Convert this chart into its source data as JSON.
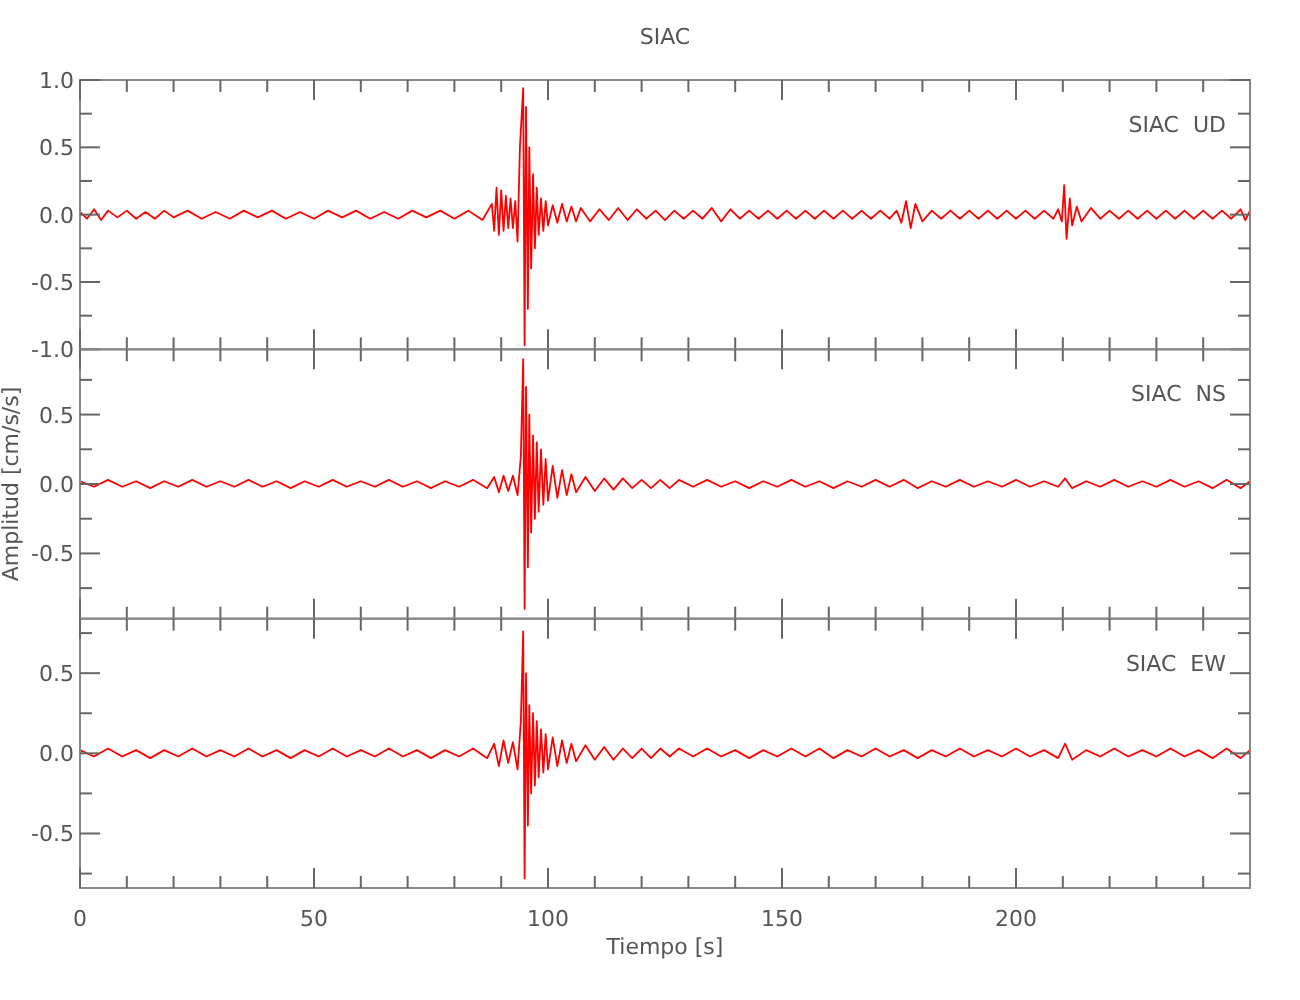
{
  "chart_data": [
    {
      "type": "line",
      "title": "SIAC",
      "annotations": [
        "SIAC  UD"
      ],
      "tick_labels": "y",
      "xlim": [
        0,
        250
      ],
      "xticks": [
        0,
        {
          "value": 10,
          "label": null
        },
        {
          "value": 20,
          "label": null
        },
        {
          "value": 30,
          "label": null
        },
        {
          "value": 40,
          "label": null
        },
        50,
        {
          "value": 60,
          "label": null
        },
        {
          "value": 70,
          "label": null
        },
        {
          "value": 80,
          "label": null
        },
        {
          "value": 90,
          "label": null
        },
        100,
        {
          "value": 110,
          "label": null
        },
        {
          "value": 120,
          "label": null
        },
        {
          "value": 130,
          "label": null
        },
        {
          "value": 140,
          "label": null
        },
        150,
        {
          "value": 160,
          "label": null
        },
        {
          "value": 170,
          "label": null
        },
        {
          "value": 180,
          "label": null
        },
        {
          "value": 190,
          "label": null
        },
        200,
        {
          "value": 210,
          "label": null
        },
        {
          "value": 220,
          "label": null
        },
        {
          "value": 230,
          "label": null
        },
        {
          "value": 240,
          "label": null
        }
      ],
      "ylim": [
        -1,
        1
      ],
      "yticks": [
        {
          "value": -1,
          "label": "-1.0"
        },
        {
          "value": -0.75,
          "label": null
        },
        {
          "value": -0.5,
          "label": "-0.5"
        },
        {
          "value": -0.25,
          "label": null
        },
        {
          "value": 0,
          "label": "0.0"
        },
        {
          "value": 0.25,
          "label": null
        },
        {
          "value": 0.5,
          "label": "0.5"
        },
        {
          "value": 0.75,
          "label": null
        },
        {
          "value": 1,
          "label": "1.0"
        }
      ],
      "x": [
        0,
        1.5,
        3,
        4.5,
        6,
        8,
        10,
        12,
        14,
        16,
        18,
        20,
        23,
        26,
        29,
        32,
        35,
        38,
        41,
        44,
        47,
        50,
        53,
        56,
        59,
        62,
        65,
        68,
        71,
        74,
        77,
        80,
        83,
        86,
        88,
        88.5,
        89,
        89.5,
        90,
        90.5,
        91,
        91.5,
        92,
        92.5,
        93,
        93.5,
        94,
        94.7,
        95,
        95.3,
        95.7,
        96,
        96.4,
        96.8,
        97.2,
        97.6,
        98,
        98.5,
        99,
        99.5,
        100,
        101,
        102,
        103,
        104,
        105,
        106,
        107,
        109,
        111,
        113,
        115,
        117,
        119,
        121,
        123,
        125,
        127,
        129,
        131,
        133,
        135,
        137,
        139,
        141,
        143,
        145,
        147,
        149,
        151,
        153,
        155,
        157,
        159,
        161,
        163,
        165,
        167,
        169,
        171,
        173,
        174.5,
        175.5,
        176.5,
        177.5,
        178.5,
        180,
        182,
        184,
        186,
        188,
        190,
        192,
        194,
        196,
        198,
        200,
        202,
        204,
        206,
        208,
        209,
        209.8,
        210.3,
        210.8,
        211.5,
        212,
        213,
        214,
        216,
        218,
        220,
        222,
        224,
        226,
        228,
        230,
        232,
        234,
        236,
        238,
        240,
        242,
        244,
        246,
        248,
        249,
        250
      ],
      "series": [
        {
          "color": "#ff0000",
          "values": [
            0.02,
            -0.03,
            0.04,
            -0.04,
            0.03,
            -0.02,
            0.03,
            -0.03,
            0.02,
            -0.03,
            0.03,
            -0.02,
            0.03,
            -0.03,
            0.02,
            -0.03,
            0.03,
            -0.02,
            0.03,
            -0.03,
            0.02,
            -0.03,
            0.03,
            -0.02,
            0.03,
            -0.03,
            0.02,
            -0.03,
            0.03,
            -0.02,
            0.03,
            -0.03,
            0.03,
            -0.04,
            0.08,
            -0.12,
            0.2,
            -0.15,
            0.18,
            -0.12,
            0.14,
            -0.1,
            0.12,
            -0.1,
            0.1,
            -0.2,
            0.5,
            0.94,
            -0.97,
            0.8,
            -0.7,
            0.5,
            -0.4,
            0.3,
            -0.25,
            0.2,
            -0.15,
            0.12,
            -0.12,
            0.1,
            -0.08,
            0.07,
            -0.06,
            0.08,
            -0.05,
            0.06,
            -0.05,
            0.05,
            -0.05,
            0.04,
            -0.04,
            0.05,
            -0.04,
            0.04,
            -0.03,
            0.03,
            -0.04,
            0.03,
            -0.03,
            0.03,
            -0.03,
            0.05,
            -0.05,
            0.04,
            -0.03,
            0.03,
            -0.03,
            0.03,
            -0.03,
            0.03,
            -0.03,
            0.03,
            -0.03,
            0.03,
            -0.03,
            0.03,
            -0.03,
            0.03,
            -0.03,
            0.03,
            -0.03,
            0.03,
            -0.06,
            0.1,
            -0.1,
            0.08,
            -0.05,
            0.03,
            -0.03,
            0.03,
            -0.03,
            0.03,
            -0.03,
            0.03,
            -0.03,
            0.03,
            -0.03,
            0.03,
            -0.03,
            0.03,
            -0.03,
            0.04,
            -0.05,
            0.22,
            -0.18,
            0.12,
            -0.08,
            0.06,
            -0.05,
            0.05,
            -0.03,
            0.03,
            -0.03,
            0.03,
            -0.03,
            0.03,
            -0.03,
            0.03,
            -0.03,
            0.03,
            -0.03,
            0.03,
            -0.03,
            0.03,
            -0.03,
            0.04,
            -0.04,
            0.03
          ]
        }
      ]
    },
    {
      "type": "line",
      "ylabel": "Amplitud [cm/s/s]",
      "annotations": [
        "SIAC  NS"
      ],
      "tick_labels": "y",
      "xlim": [
        0,
        250
      ],
      "xticks": [
        0,
        {
          "value": 10,
          "label": null
        },
        {
          "value": 20,
          "label": null
        },
        {
          "value": 30,
          "label": null
        },
        {
          "value": 40,
          "label": null
        },
        50,
        {
          "value": 60,
          "label": null
        },
        {
          "value": 70,
          "label": null
        },
        {
          "value": 80,
          "label": null
        },
        {
          "value": 90,
          "label": null
        },
        100,
        {
          "value": 110,
          "label": null
        },
        {
          "value": 120,
          "label": null
        },
        {
          "value": 130,
          "label": null
        },
        {
          "value": 140,
          "label": null
        },
        150,
        {
          "value": 160,
          "label": null
        },
        {
          "value": 170,
          "label": null
        },
        {
          "value": 180,
          "label": null
        },
        {
          "value": 190,
          "label": null
        },
        200,
        {
          "value": 210,
          "label": null
        },
        {
          "value": 220,
          "label": null
        },
        {
          "value": 230,
          "label": null
        },
        {
          "value": 240,
          "label": null
        }
      ],
      "ylim": [
        -0.97,
        0.97
      ],
      "yticks": [
        {
          "value": -0.75,
          "label": null
        },
        {
          "value": -0.5,
          "label": "-0.5"
        },
        {
          "value": -0.25,
          "label": null
        },
        {
          "value": 0,
          "label": "0.0"
        },
        {
          "value": 0.25,
          "label": null
        },
        {
          "value": 0.5,
          "label": "0.5"
        },
        {
          "value": 0.75,
          "label": null
        }
      ],
      "x": [
        0,
        3,
        6,
        9,
        12,
        15,
        18,
        21,
        24,
        27,
        30,
        33,
        36,
        39,
        42,
        45,
        48,
        51,
        54,
        57,
        60,
        63,
        66,
        69,
        72,
        75,
        78,
        81,
        84,
        87,
        88.5,
        89.5,
        90.5,
        91.5,
        92.5,
        93.5,
        94.2,
        94.7,
        95,
        95.3,
        95.7,
        96,
        96.4,
        96.8,
        97.2,
        97.6,
        98,
        98.5,
        99,
        99.5,
        100,
        101,
        102,
        103,
        104,
        105,
        106,
        108,
        110,
        112,
        114,
        116,
        118,
        120,
        122,
        124,
        126,
        128,
        131,
        134,
        137,
        140,
        143,
        146,
        149,
        152,
        155,
        158,
        161,
        164,
        167,
        170,
        173,
        176,
        179,
        182,
        185,
        188,
        191,
        194,
        197,
        200,
        203,
        206,
        209,
        210.5,
        212,
        215,
        218,
        221,
        224,
        227,
        230,
        233,
        236,
        239,
        242,
        245,
        248,
        250
      ],
      "series": [
        {
          "color": "#ff0000",
          "values": [
            0.02,
            -0.02,
            0.03,
            -0.02,
            0.02,
            -0.03,
            0.02,
            -0.02,
            0.03,
            -0.02,
            0.02,
            -0.02,
            0.03,
            -0.02,
            0.02,
            -0.03,
            0.02,
            -0.02,
            0.03,
            -0.02,
            0.02,
            -0.02,
            0.03,
            -0.02,
            0.02,
            -0.03,
            0.02,
            -0.02,
            0.03,
            -0.03,
            0.05,
            -0.06,
            0.06,
            -0.05,
            0.06,
            -0.08,
            0.2,
            0.9,
            -0.9,
            0.7,
            -0.6,
            0.5,
            -0.35,
            0.35,
            -0.25,
            0.3,
            -0.2,
            0.25,
            -0.15,
            0.18,
            -0.12,
            0.13,
            -0.1,
            0.1,
            -0.08,
            0.07,
            -0.06,
            0.05,
            -0.05,
            0.04,
            -0.04,
            0.04,
            -0.03,
            0.03,
            -0.03,
            0.03,
            -0.03,
            0.03,
            -0.02,
            0.03,
            -0.02,
            0.02,
            -0.03,
            0.02,
            -0.02,
            0.03,
            -0.02,
            0.02,
            -0.03,
            0.02,
            -0.02,
            0.03,
            -0.02,
            0.03,
            -0.03,
            0.02,
            -0.02,
            0.03,
            -0.02,
            0.02,
            -0.02,
            0.03,
            -0.02,
            0.02,
            -0.02,
            0.04,
            -0.03,
            0.02,
            -0.02,
            0.03,
            -0.02,
            0.02,
            -0.02,
            0.03,
            -0.02,
            0.02,
            -0.03,
            0.03,
            -0.03,
            0.02
          ]
        }
      ]
    },
    {
      "type": "line",
      "xlabel": "Tiempo [s]",
      "annotations": [
        "SIAC  EW"
      ],
      "xlim": [
        0,
        250
      ],
      "xticks": [
        0,
        {
          "value": 10,
          "label": null
        },
        {
          "value": 20,
          "label": null
        },
        {
          "value": 30,
          "label": null
        },
        {
          "value": 40,
          "label": null
        },
        50,
        {
          "value": 60,
          "label": null
        },
        {
          "value": 70,
          "label": null
        },
        {
          "value": 80,
          "label": null
        },
        {
          "value": 90,
          "label": null
        },
        100,
        {
          "value": 110,
          "label": null
        },
        {
          "value": 120,
          "label": null
        },
        {
          "value": 130,
          "label": null
        },
        {
          "value": 140,
          "label": null
        },
        150,
        {
          "value": 160,
          "label": null
        },
        {
          "value": 170,
          "label": null
        },
        {
          "value": 180,
          "label": null
        },
        {
          "value": 190,
          "label": null
        },
        200,
        {
          "value": 210,
          "label": null
        },
        {
          "value": 220,
          "label": null
        },
        {
          "value": 230,
          "label": null
        },
        {
          "value": 240,
          "label": null
        }
      ],
      "ylim": [
        -0.84,
        0.84
      ],
      "yticks": [
        {
          "value": -0.75,
          "label": null
        },
        {
          "value": -0.5,
          "label": "-0.5"
        },
        {
          "value": -0.25,
          "label": null
        },
        {
          "value": 0,
          "label": "0.0"
        },
        {
          "value": 0.25,
          "label": null
        },
        {
          "value": 0.5,
          "label": "0.5"
        },
        {
          "value": 0.75,
          "label": null
        }
      ],
      "x": [
        0,
        3,
        6,
        9,
        12,
        15,
        18,
        21,
        24,
        27,
        30,
        33,
        36,
        39,
        42,
        45,
        48,
        51,
        54,
        57,
        60,
        63,
        66,
        69,
        72,
        75,
        78,
        81,
        84,
        87,
        88.5,
        89.5,
        90.5,
        91.5,
        92.5,
        93.5,
        94.2,
        94.7,
        95,
        95.3,
        95.7,
        96,
        96.4,
        96.8,
        97.2,
        97.6,
        98,
        98.5,
        99,
        99.5,
        100,
        101,
        102,
        103,
        104,
        105,
        106,
        108,
        110,
        112,
        114,
        116,
        118,
        120,
        122,
        124,
        126,
        128,
        131,
        134,
        137,
        140,
        143,
        146,
        149,
        152,
        155,
        158,
        161,
        164,
        167,
        170,
        173,
        176,
        179,
        182,
        185,
        188,
        191,
        194,
        197,
        200,
        203,
        206,
        209,
        210.5,
        212,
        215,
        218,
        221,
        224,
        227,
        230,
        233,
        236,
        239,
        242,
        245,
        248,
        250
      ],
      "series": [
        {
          "color": "#ff0000",
          "values": [
            0.02,
            -0.02,
            0.03,
            -0.02,
            0.02,
            -0.03,
            0.02,
            -0.02,
            0.03,
            -0.02,
            0.02,
            -0.02,
            0.03,
            -0.02,
            0.02,
            -0.03,
            0.02,
            -0.02,
            0.03,
            -0.02,
            0.02,
            -0.02,
            0.03,
            -0.02,
            0.02,
            -0.03,
            0.02,
            -0.02,
            0.03,
            -0.03,
            0.06,
            -0.08,
            0.08,
            -0.06,
            0.07,
            -0.1,
            0.2,
            0.76,
            -0.78,
            0.5,
            -0.45,
            0.3,
            -0.25,
            0.25,
            -0.2,
            0.2,
            -0.15,
            0.15,
            -0.12,
            0.12,
            -0.1,
            0.1,
            -0.08,
            0.08,
            -0.06,
            0.06,
            -0.05,
            0.05,
            -0.04,
            0.04,
            -0.04,
            0.03,
            -0.03,
            0.03,
            -0.03,
            0.03,
            -0.02,
            0.03,
            -0.02,
            0.03,
            -0.02,
            0.02,
            -0.03,
            0.02,
            -0.02,
            0.03,
            -0.02,
            0.03,
            -0.03,
            0.02,
            -0.02,
            0.03,
            -0.02,
            0.02,
            -0.03,
            0.02,
            -0.02,
            0.03,
            -0.02,
            0.02,
            -0.02,
            0.03,
            -0.02,
            0.02,
            -0.03,
            0.06,
            -0.04,
            0.02,
            -0.02,
            0.03,
            -0.02,
            0.02,
            -0.02,
            0.03,
            -0.02,
            0.02,
            -0.03,
            0.03,
            -0.03,
            0.02
          ]
        }
      ]
    }
  ]
}
